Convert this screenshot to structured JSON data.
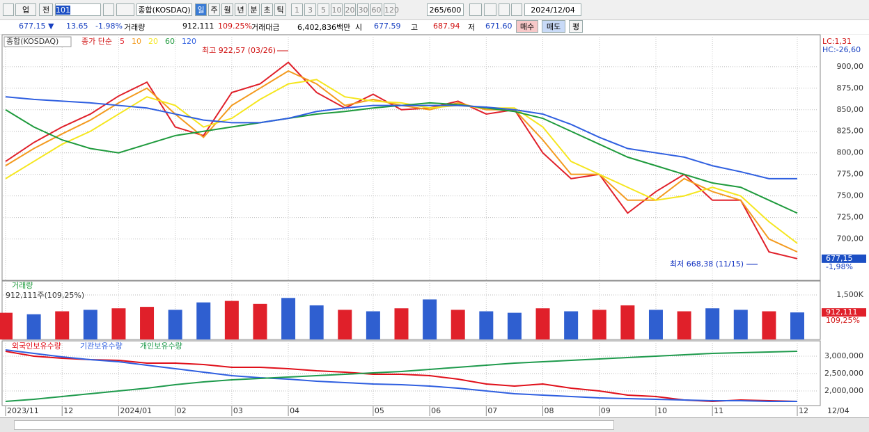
{
  "toolbar": {
    "market": "업",
    "prev": "전",
    "code": "101",
    "name": "종합(KOSDAQ)",
    "periods": [
      "일",
      "주",
      "월",
      "년",
      "분",
      "초",
      "틱"
    ],
    "spans": [
      "1",
      "3",
      "5",
      "10",
      "20",
      "30",
      "60",
      "120"
    ],
    "count": "265",
    "max": "/600",
    "date": "2024/12/04"
  },
  "quote": {
    "price": "677.15 ▼",
    "change": "13.65",
    "pct": "-1.98%",
    "vol_label": "거래량",
    "vol": "912,111",
    "vol_pct": "109.25%",
    "amt_label": "거래대금",
    "amt": "6,402,836백만",
    "open_label": "시",
    "open": "677.59",
    "high_label": "고",
    "high": "687.94",
    "low_label": "저",
    "low": "671.60",
    "buy": "매수",
    "sell": "매도",
    "eval": "평"
  },
  "x_end_label": "12/04",
  "chart_data": [
    {
      "type": "line",
      "title": "종합(KOSDAQ)",
      "legend_prefix": "종가 단순",
      "grid": true,
      "categories": [
        "2023/11",
        null,
        "12",
        null,
        "2024/01",
        null,
        "02",
        null,
        "03",
        null,
        "04",
        null,
        null,
        "05",
        null,
        "06",
        null,
        "07",
        null,
        "08",
        null,
        "09",
        null,
        "10",
        null,
        "11",
        null,
        null,
        "12"
      ],
      "series": [
        {
          "name": "5",
          "color": "#e0202a",
          "values": [
            790,
            812,
            830,
            845,
            866,
            882,
            830,
            820,
            870,
            880,
            905,
            870,
            852,
            868,
            850,
            852,
            860,
            845,
            850,
            800,
            770,
            775,
            730,
            755,
            775,
            745,
            745,
            685,
            677.15
          ]
        },
        {
          "name": "10",
          "color": "#f39a1e",
          "values": [
            785,
            805,
            822,
            838,
            858,
            875,
            845,
            818,
            855,
            875,
            895,
            880,
            855,
            862,
            855,
            850,
            858,
            850,
            850,
            815,
            775,
            775,
            745,
            745,
            770,
            755,
            745,
            700,
            685
          ]
        },
        {
          "name": "20",
          "color": "#f5e61e",
          "values": [
            770,
            790,
            810,
            825,
            845,
            865,
            855,
            830,
            840,
            862,
            880,
            885,
            865,
            860,
            858,
            852,
            855,
            852,
            852,
            830,
            790,
            775,
            760,
            745,
            750,
            760,
            750,
            720,
            695
          ]
        },
        {
          "name": "60",
          "color": "#1e9a3c",
          "values": [
            850,
            830,
            815,
            805,
            800,
            810,
            820,
            825,
            830,
            835,
            840,
            845,
            848,
            852,
            855,
            858,
            856,
            852,
            848,
            840,
            825,
            810,
            795,
            785,
            775,
            765,
            760,
            745,
            730
          ]
        },
        {
          "name": "120",
          "color": "#2f5fe0",
          "values": [
            865,
            862,
            860,
            858,
            855,
            852,
            845,
            838,
            835,
            835,
            840,
            848,
            852,
            855,
            855,
            855,
            855,
            853,
            850,
            845,
            833,
            818,
            805,
            800,
            795,
            785,
            778,
            770,
            770
          ]
        }
      ],
      "ylim": [
        652,
        937
      ],
      "yticks": [
        {
          "value": 700,
          "label": "700,00"
        },
        {
          "value": 725,
          "label": "725,00"
        },
        {
          "value": 750,
          "label": "750,00"
        },
        {
          "value": 775,
          "label": "775,00"
        },
        {
          "value": 800,
          "label": "800,00"
        },
        {
          "value": 825,
          "label": "825,00"
        },
        {
          "value": 850,
          "label": "850,00"
        },
        {
          "value": 875,
          "label": "875,00"
        },
        {
          "value": 900,
          "label": "900,00"
        }
      ],
      "annotations": [
        {
          "text": "최고 922,57 (03/26)",
          "color": "#d01010"
        },
        {
          "text": "최저 668,38 (11/15)",
          "color": "#1030c0"
        }
      ],
      "last_label": "677,15",
      "last_pct": "-1,98%",
      "lc": "LC:1,31",
      "hc": "HC:-26,60"
    },
    {
      "type": "bar",
      "title": "거래량",
      "subtitle": "912,111주(109,25%)",
      "values": [
        900,
        850,
        950,
        1000,
        1050,
        1100,
        1000,
        1250,
        1300,
        1200,
        1400,
        1150,
        1000,
        950,
        1050,
        1350,
        1000,
        950,
        900,
        1050,
        950,
        1000,
        1150,
        1000,
        950,
        1050,
        1000,
        950,
        912.111
      ],
      "colors": [
        "#e0202a",
        "#2f5fd0",
        "#e0202a",
        "#2f5fd0",
        "#e0202a",
        "#e0202a",
        "#2f5fd0",
        "#2f5fd0",
        "#e0202a",
        "#e0202a",
        "#2f5fd0",
        "#2f5fd0",
        "#e0202a",
        "#2f5fd0",
        "#e0202a",
        "#2f5fd0",
        "#e0202a",
        "#2f5fd0",
        "#2f5fd0",
        "#e0202a",
        "#2f5fd0",
        "#e0202a",
        "#e0202a",
        "#2f5fd0",
        "#e0202a",
        "#2f5fd0",
        "#2f5fd0",
        "#e0202a",
        "#2f5fd0"
      ],
      "ylim": [
        0,
        1970
      ],
      "yticks": [
        {
          "value": 1500,
          "label": "1,500K"
        }
      ],
      "last_label": "912,111",
      "last_pct": "109,25%"
    },
    {
      "type": "line",
      "series": [
        {
          "name": "외국인보유수량",
          "color": "#e0101a",
          "values": [
            3140000,
            3000000,
            2940000,
            2900000,
            2880000,
            2800000,
            2800000,
            2760000,
            2680000,
            2680000,
            2640000,
            2580000,
            2540000,
            2480000,
            2480000,
            2440000,
            2340000,
            2200000,
            2140000,
            2200000,
            2080000,
            2000000,
            1880000,
            1840000,
            1740000,
            1700000,
            1740000,
            1720000,
            1700000
          ]
        },
        {
          "name": "기관보유수량",
          "color": "#2f5fe0",
          "values": [
            3180000,
            3080000,
            2980000,
            2900000,
            2840000,
            2740000,
            2640000,
            2540000,
            2440000,
            2380000,
            2340000,
            2280000,
            2240000,
            2200000,
            2180000,
            2140000,
            2080000,
            2000000,
            1920000,
            1880000,
            1840000,
            1800000,
            1780000,
            1760000,
            1740000,
            1720000,
            1720000,
            1700000,
            1700000
          ]
        },
        {
          "name": "개인보유수량",
          "color": "#1e9a4c",
          "values": [
            1700000,
            1760000,
            1840000,
            1920000,
            2000000,
            2080000,
            2180000,
            2260000,
            2320000,
            2360000,
            2400000,
            2440000,
            2480000,
            2520000,
            2560000,
            2620000,
            2680000,
            2740000,
            2800000,
            2840000,
            2880000,
            2920000,
            2960000,
            3000000,
            3040000,
            3080000,
            3100000,
            3120000,
            3140000
          ]
        }
      ],
      "ylim": [
        1580000,
        3440000
      ],
      "yticks": [
        {
          "value": 2000000,
          "label": "2,000,000"
        },
        {
          "value": 2500000,
          "label": "2,500,000"
        },
        {
          "value": 3000000,
          "label": "3,000,000"
        }
      ]
    }
  ]
}
